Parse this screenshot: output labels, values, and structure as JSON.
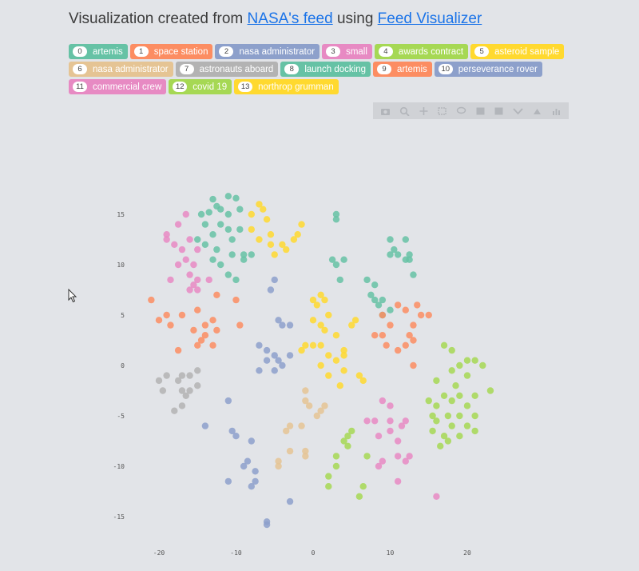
{
  "header": {
    "prefix": "Visualization created from",
    "link1": "NASA's feed",
    "middle": "using",
    "link2": "Feed Visualizer"
  },
  "tags": [
    {
      "num": "0",
      "label": "artemis",
      "color": "#66c2a5"
    },
    {
      "num": "1",
      "label": "space station",
      "color": "#fc8d62"
    },
    {
      "num": "2",
      "label": "nasa administrator",
      "color": "#8da0cb"
    },
    {
      "num": "3",
      "label": "small",
      "color": "#e78ac3"
    },
    {
      "num": "4",
      "label": "awards contract",
      "color": "#a6d854"
    },
    {
      "num": "5",
      "label": "asteroid sample",
      "color": "#ffd92f"
    },
    {
      "num": "6",
      "label": "nasa administrator",
      "color": "#e5c494"
    },
    {
      "num": "7",
      "label": "astronauts aboard",
      "color": "#b3b3b3"
    },
    {
      "num": "8",
      "label": "launch docking",
      "color": "#66c2a5"
    },
    {
      "num": "9",
      "label": "artemis",
      "color": "#fc8d62"
    },
    {
      "num": "10",
      "label": "perseverance rover",
      "color": "#8da0cb"
    },
    {
      "num": "11",
      "label": "commercial crew",
      "color": "#e78ac3"
    },
    {
      "num": "12",
      "label": "covid 19",
      "color": "#a6d854"
    },
    {
      "num": "13",
      "label": "northrop grumman",
      "color": "#ffd92f"
    }
  ],
  "modebar": [
    "camera-icon",
    "zoom-icon",
    "pan-icon",
    "box-select-icon",
    "lasso-icon",
    "zoom-in-icon",
    "zoom-out-icon",
    "autoscale-icon",
    "reset-axes-icon",
    "plotly-logo-icon"
  ],
  "chart_data": {
    "type": "scatter",
    "xticks": [
      "-20",
      "-10",
      "0",
      "10",
      "20"
    ],
    "yticks": [
      "15",
      "10",
      "5",
      "0",
      "-5",
      "-10",
      "-15"
    ],
    "xlim": [
      -23,
      23
    ],
    "ylim": [
      -18.5,
      18.5
    ],
    "grid": false,
    "series": [
      {
        "cluster": 0,
        "color": "#66c2a5",
        "points": [
          [
            -13,
            16.5
          ],
          [
            -11,
            16.8
          ],
          [
            -10,
            16.6
          ],
          [
            -12.5,
            15.8
          ],
          [
            -13.5,
            15.2
          ],
          [
            -12,
            15.5
          ],
          [
            -11,
            15
          ],
          [
            -9.5,
            15.5
          ],
          [
            -14.5,
            15
          ],
          [
            -14,
            14
          ],
          [
            -12,
            14
          ],
          [
            -11,
            13.5
          ],
          [
            -9.5,
            13.5
          ],
          [
            -13,
            13
          ],
          [
            -10.5,
            12.5
          ],
          [
            -15,
            12.5
          ],
          [
            -14,
            12
          ],
          [
            -12.5,
            11.5
          ],
          [
            -9,
            11
          ],
          [
            -8,
            11
          ],
          [
            -10.5,
            11
          ],
          [
            -13,
            10.5
          ],
          [
            -12,
            10
          ],
          [
            -9,
            10.5
          ],
          [
            -11,
            9
          ],
          [
            -10,
            8.5
          ]
        ]
      },
      {
        "cluster": 1,
        "color": "#fc8d62",
        "points": [
          [
            -21,
            6.5
          ],
          [
            -19,
            5
          ],
          [
            -20,
            4.5
          ],
          [
            -18.5,
            4
          ],
          [
            -17,
            5
          ],
          [
            -15,
            5.5
          ],
          [
            -14,
            4
          ],
          [
            -13,
            4.5
          ],
          [
            -15.5,
            3.5
          ],
          [
            -14,
            3
          ],
          [
            -12.5,
            3.5
          ],
          [
            -9.5,
            4
          ],
          [
            -15,
            2
          ],
          [
            -13,
            2
          ],
          [
            -14.5,
            2.5
          ],
          [
            -17.5,
            1.5
          ],
          [
            -12.5,
            7
          ],
          [
            -10,
            6.5
          ]
        ]
      },
      {
        "cluster": 2,
        "color": "#8da0cb",
        "points": [
          [
            -5,
            8.5
          ],
          [
            -5.5,
            7.5
          ],
          [
            -4,
            4
          ],
          [
            -4.5,
            4.5
          ],
          [
            -3,
            4
          ],
          [
            -7,
            2
          ],
          [
            -6,
            1.5
          ],
          [
            -5,
            1
          ],
          [
            -3,
            1
          ],
          [
            -4,
            0
          ],
          [
            -5,
            -0.5
          ],
          [
            -6,
            0.5
          ],
          [
            -7,
            -0.5
          ],
          [
            -4.5,
            0.5
          ],
          [
            -11,
            -3.5
          ],
          [
            -14,
            -6
          ],
          [
            -10,
            -7
          ],
          [
            -8,
            -7.5
          ],
          [
            -10.5,
            -6.5
          ]
        ]
      },
      {
        "cluster": 3,
        "color": "#e78ac3",
        "points": [
          [
            -16.5,
            15
          ],
          [
            -17.5,
            14
          ],
          [
            -19,
            13
          ],
          [
            -18,
            12
          ],
          [
            -19,
            12.5
          ],
          [
            -16,
            12.5
          ],
          [
            -15,
            11.5
          ],
          [
            -17,
            11.5
          ],
          [
            -16.5,
            10.5
          ],
          [
            -15.5,
            10
          ],
          [
            -17.5,
            10
          ],
          [
            -16,
            9
          ],
          [
            -18.5,
            8.5
          ],
          [
            -15,
            8.5
          ],
          [
            -15,
            7.5
          ],
          [
            -16,
            7.5
          ],
          [
            -13.5,
            8.5
          ],
          [
            -15.5,
            8
          ]
        ]
      },
      {
        "cluster": 4,
        "color": "#a6d854",
        "points": [
          [
            17,
            2
          ],
          [
            18,
            1.5
          ],
          [
            20,
            0.5
          ],
          [
            21,
            0.5
          ],
          [
            19,
            0
          ],
          [
            22,
            0
          ],
          [
            18,
            -0.5
          ],
          [
            20,
            -1
          ],
          [
            16,
            -1.5
          ],
          [
            18.5,
            -2
          ],
          [
            19,
            -3
          ],
          [
            21,
            -3
          ],
          [
            23,
            -2.5
          ],
          [
            17,
            -3
          ],
          [
            18,
            -3.5
          ],
          [
            20,
            -4
          ],
          [
            16,
            -4
          ],
          [
            15.5,
            -5
          ],
          [
            17.5,
            -5
          ],
          [
            19,
            -5
          ],
          [
            21,
            -5
          ],
          [
            16,
            -5.5
          ],
          [
            18,
            -6
          ],
          [
            20,
            -6
          ],
          [
            15.5,
            -6.5
          ],
          [
            17,
            -7
          ],
          [
            19,
            -7
          ],
          [
            21,
            -6.5
          ],
          [
            17.5,
            -7.5
          ],
          [
            16.5,
            -8
          ],
          [
            15,
            -3.5
          ]
        ]
      },
      {
        "cluster": 5,
        "color": "#ffd92f",
        "points": [
          [
            -7,
            16
          ],
          [
            -8,
            15
          ],
          [
            -6.5,
            15.5
          ],
          [
            -6,
            14.5
          ],
          [
            -8,
            13.5
          ],
          [
            -5.5,
            13
          ],
          [
            -4,
            12
          ],
          [
            -7,
            12.5
          ],
          [
            -5.5,
            12
          ],
          [
            -3.5,
            11.5
          ],
          [
            -1.5,
            14
          ],
          [
            -2,
            13
          ],
          [
            -2.5,
            12.5
          ],
          [
            -5,
            11
          ]
        ]
      },
      {
        "cluster": 6,
        "color": "#e5c494",
        "points": [
          [
            -1,
            -2.5
          ],
          [
            -1,
            -3.5
          ],
          [
            -0.5,
            -4
          ],
          [
            1,
            -4.5
          ],
          [
            1.5,
            -4
          ],
          [
            0.5,
            -5
          ],
          [
            -3,
            -6
          ],
          [
            -3.5,
            -6.5
          ],
          [
            -1.5,
            -6
          ],
          [
            -3,
            -8.5
          ],
          [
            -1,
            -8.5
          ],
          [
            -1,
            -9
          ],
          [
            -4.5,
            -9.5
          ],
          [
            -4.5,
            -10
          ]
        ]
      },
      {
        "cluster": 7,
        "color": "#b3b3b3",
        "points": [
          [
            -20,
            -1.5
          ],
          [
            -19,
            -1
          ],
          [
            -17,
            -1
          ],
          [
            -16,
            -1
          ],
          [
            -15,
            -0.5
          ],
          [
            -17.5,
            -1.5
          ],
          [
            -19.5,
            -2.5
          ],
          [
            -17,
            -2.5
          ],
          [
            -16,
            -2.5
          ],
          [
            -15,
            -2
          ],
          [
            -16.5,
            -3
          ],
          [
            -17,
            -4
          ],
          [
            -18,
            -4.5
          ]
        ]
      },
      {
        "cluster": 8,
        "color": "#66c2a5",
        "points": [
          [
            3,
            15
          ],
          [
            3,
            14.5
          ],
          [
            10,
            12.5
          ],
          [
            12,
            12.5
          ],
          [
            10.5,
            11.5
          ],
          [
            11,
            11
          ],
          [
            10,
            11
          ],
          [
            12.5,
            11
          ],
          [
            12,
            10.5
          ],
          [
            12.5,
            10.5
          ],
          [
            13,
            9
          ],
          [
            2.5,
            10.5
          ],
          [
            3,
            10
          ],
          [
            4,
            10.5
          ],
          [
            3.5,
            8.5
          ],
          [
            7,
            8.5
          ],
          [
            8,
            8
          ],
          [
            7.5,
            7
          ],
          [
            8,
            6.5
          ],
          [
            9,
            6.5
          ],
          [
            8.5,
            6
          ],
          [
            9,
            5
          ],
          [
            10,
            5.5
          ]
        ]
      },
      {
        "cluster": 9,
        "color": "#fc8d62",
        "points": [
          [
            11,
            6
          ],
          [
            12,
            5.5
          ],
          [
            13.5,
            6
          ],
          [
            14,
            5
          ],
          [
            15,
            5
          ],
          [
            9,
            5
          ],
          [
            10,
            4
          ],
          [
            13,
            4
          ],
          [
            9,
            3
          ],
          [
            12,
            2
          ],
          [
            12.5,
            3
          ],
          [
            9.5,
            2
          ],
          [
            13,
            2.5
          ],
          [
            11,
            1.5
          ],
          [
            13,
            0
          ],
          [
            8,
            3
          ]
        ]
      },
      {
        "cluster": 10,
        "color": "#8da0cb",
        "points": [
          [
            -3,
            -13.5
          ],
          [
            -6,
            -15.5
          ],
          [
            -6,
            -15.8
          ],
          [
            -7.5,
            -10.5
          ],
          [
            -8.5,
            -9.5
          ],
          [
            -9,
            -10
          ],
          [
            -11,
            -11.5
          ],
          [
            -7.5,
            -11.5
          ],
          [
            -8,
            -12
          ]
        ]
      },
      {
        "cluster": 11,
        "color": "#e78ac3",
        "points": [
          [
            9,
            -3.5
          ],
          [
            10,
            -4
          ],
          [
            7,
            -5.5
          ],
          [
            8,
            -5.5
          ],
          [
            10,
            -5.5
          ],
          [
            11.5,
            -6
          ],
          [
            12,
            -5.5
          ],
          [
            10,
            -6.5
          ],
          [
            8.5,
            -7
          ],
          [
            11,
            -7.5
          ],
          [
            12.5,
            -9
          ],
          [
            9,
            -9.5
          ],
          [
            11,
            -9
          ],
          [
            8.5,
            -10
          ],
          [
            12,
            -9.5
          ],
          [
            11,
            -11.5
          ],
          [
            16,
            -13
          ]
        ]
      },
      {
        "cluster": 12,
        "color": "#a6d854",
        "points": [
          [
            4.5,
            -7
          ],
          [
            5,
            -6.5
          ],
          [
            4,
            -7.5
          ],
          [
            4.5,
            -8
          ],
          [
            3,
            -9
          ],
          [
            7,
            -9
          ],
          [
            3,
            -10
          ],
          [
            2,
            -11
          ],
          [
            2,
            -12
          ],
          [
            6.5,
            -12
          ],
          [
            6,
            -13
          ]
        ]
      },
      {
        "cluster": 13,
        "color": "#ffd92f",
        "points": [
          [
            0,
            6.5
          ],
          [
            1,
            7
          ],
          [
            1.5,
            6.5
          ],
          [
            0.5,
            6
          ],
          [
            2,
            5
          ],
          [
            1,
            4
          ],
          [
            0,
            4.5
          ],
          [
            1.5,
            3.5
          ],
          [
            3,
            3
          ],
          [
            5,
            4
          ],
          [
            5.5,
            4.5
          ],
          [
            0,
            2
          ],
          [
            1,
            2
          ],
          [
            -1,
            2
          ],
          [
            -1.5,
            1.5
          ],
          [
            2,
            1
          ],
          [
            4,
            1.5
          ],
          [
            4,
            1
          ],
          [
            3,
            0.5
          ],
          [
            1,
            0
          ],
          [
            4,
            -0.5
          ],
          [
            6,
            -1
          ],
          [
            6.5,
            -1.5
          ],
          [
            2,
            -1
          ],
          [
            3.5,
            -2
          ]
        ]
      }
    ]
  }
}
